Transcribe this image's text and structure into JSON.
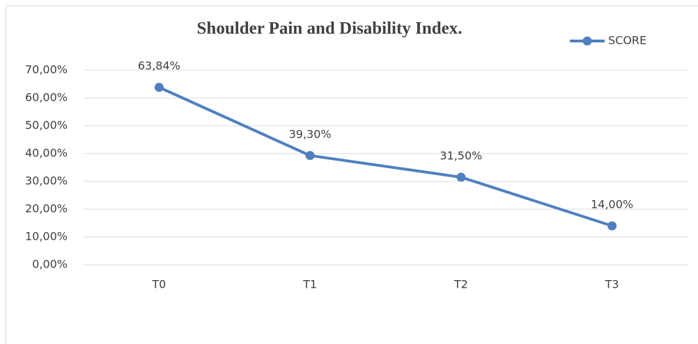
{
  "chart_data": {
    "type": "line",
    "title": "Shoulder Pain and Disability Index.",
    "categories": [
      "T0",
      "T1",
      "T2",
      "T3"
    ],
    "series": [
      {
        "name": "SCORE",
        "color": "#4f7fbf",
        "values": [
          63.84,
          39.3,
          31.5,
          14.0
        ],
        "value_labels": [
          "63,84%",
          "39,30%",
          "31,50%",
          "14,00%"
        ]
      }
    ],
    "ylim": [
      0,
      70
    ],
    "yticks": [
      {
        "value": 0,
        "label": "0,00%"
      },
      {
        "value": 10,
        "label": "10,00%"
      },
      {
        "value": 20,
        "label": "20,00%"
      },
      {
        "value": 30,
        "label": "30,00%"
      },
      {
        "value": 40,
        "label": "40,00%"
      },
      {
        "value": 50,
        "label": "50,00%"
      },
      {
        "value": 60,
        "label": "60,00%"
      },
      {
        "value": 70,
        "label": "70,00%"
      }
    ],
    "grid": true,
    "legend": "top-right"
  }
}
